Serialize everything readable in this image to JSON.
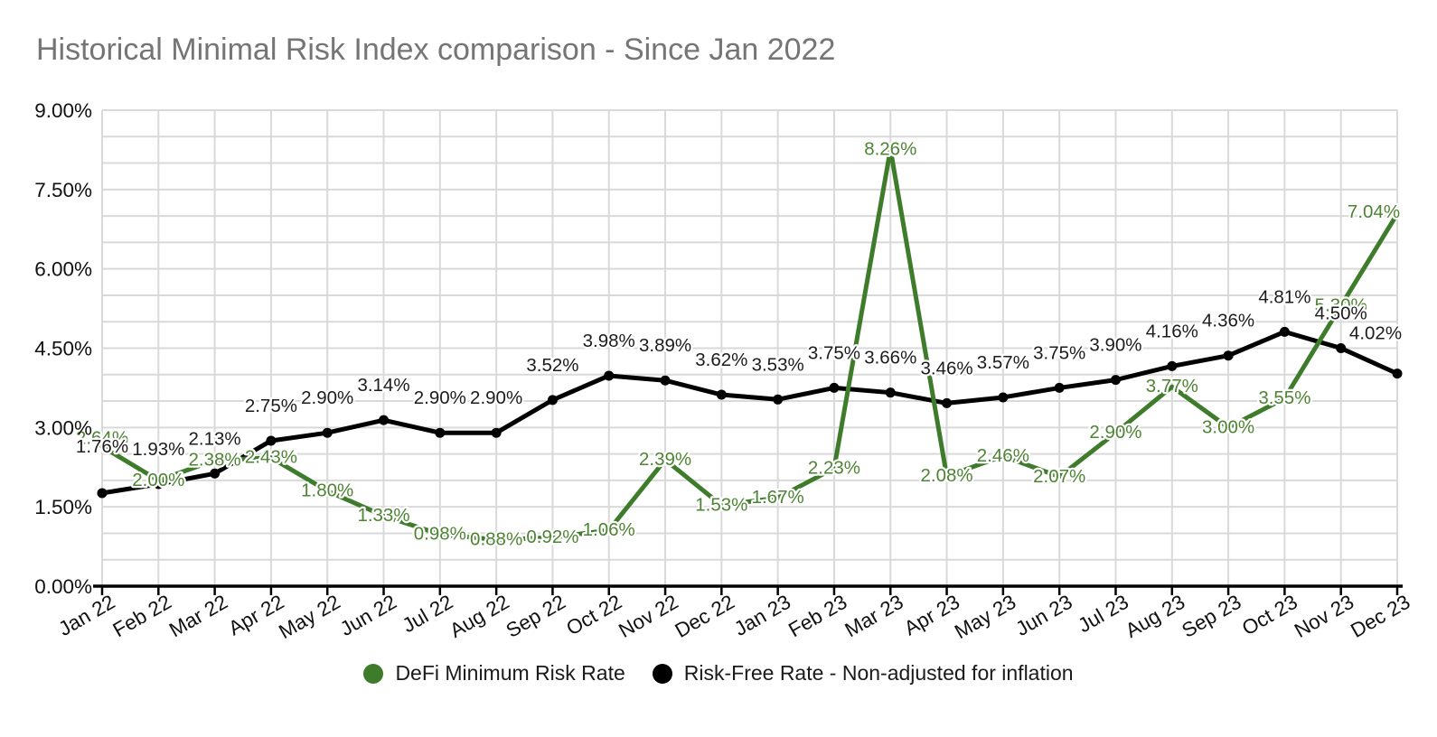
{
  "page": {
    "background": "#ffffff"
  },
  "header": {
    "title": "Historical Minimal Risk Index comparison - Since Jan 2022",
    "title_color": "#757575"
  },
  "chart_data": {
    "type": "line",
    "title": "Historical Minimal Risk Index comparison - Since Jan 2022",
    "categories": [
      "Jan 22",
      "Feb 22",
      "Mar 22",
      "Apr 22",
      "May 22",
      "Jun 22",
      "Jul 22",
      "Aug 22",
      "Sep 22",
      "Oct 22",
      "Nov 22",
      "Dec 22",
      "Jan 23",
      "Feb 23",
      "Mar 23",
      "Apr 23",
      "May 23",
      "Jun 23",
      "Jul 23",
      "Aug 23",
      "Sep 23",
      "Oct 23",
      "Nov 23",
      "Dec 23"
    ],
    "series": [
      {
        "name": "DeFi Minimum Risk Rate",
        "color": "#3E7C2C",
        "label_color": "#4D8433",
        "point_markers": false,
        "values": [
          2.64,
          2.0,
          2.38,
          2.43,
          1.8,
          1.33,
          0.98,
          0.88,
          0.92,
          1.06,
          2.39,
          1.53,
          1.67,
          2.23,
          8.26,
          2.08,
          2.46,
          2.07,
          2.9,
          3.77,
          3.0,
          3.55,
          5.3,
          7.04
        ]
      },
      {
        "name": "Risk-Free Rate - Non-adjusted for inflation",
        "color": "#000000",
        "label_color": "#1c1c1c",
        "point_markers": true,
        "values": [
          1.76,
          1.93,
          2.13,
          2.75,
          2.9,
          3.14,
          2.9,
          2.9,
          3.52,
          3.98,
          3.89,
          3.62,
          3.53,
          3.75,
          3.66,
          3.46,
          3.57,
          3.75,
          3.9,
          4.16,
          4.36,
          4.81,
          4.5,
          4.02
        ]
      }
    ],
    "y_axis": {
      "min": 0,
      "max": 9,
      "major_step": 1.5,
      "minor_gridline_step": 0.5,
      "major_tick_labels": [
        "0.00%",
        "1.50%",
        "3.00%",
        "4.50%",
        "6.00%",
        "7.50%",
        "9.00%"
      ],
      "format": "percent_2dp"
    },
    "x_axis": {
      "label_rotation_deg": -30
    },
    "grid_color": "#d9d9d9",
    "axis_color": "#000000",
    "tick_label_color": "#111111",
    "legend_position": "bottom"
  },
  "legend": {
    "items": [
      {
        "label": "DeFi Minimum Risk Rate",
        "color": "#3E7C2C"
      },
      {
        "label": "Risk-Free Rate - Non-adjusted for inflation",
        "color": "#000000"
      }
    ]
  }
}
